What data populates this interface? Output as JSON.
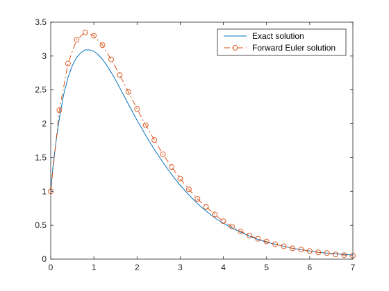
{
  "chart_data": {
    "type": "line",
    "title": "",
    "xlabel": "",
    "ylabel": "",
    "xlim": [
      0,
      7
    ],
    "ylim": [
      0,
      3.5
    ],
    "xticks": [
      0,
      1,
      2,
      3,
      4,
      5,
      6,
      7
    ],
    "yticks": [
      0,
      0.5,
      1,
      1.5,
      2,
      2.5,
      3,
      3.5
    ],
    "grid": false,
    "legend_position": "top-right",
    "series": [
      {
        "name": "Exact solution",
        "color": "#0072BD",
        "style": "solid",
        "marker": "none",
        "x": [
          0,
          0.05,
          0.1,
          0.15,
          0.2,
          0.3,
          0.4,
          0.5,
          0.6,
          0.7,
          0.8,
          0.9,
          1.0,
          1.1,
          1.2,
          1.3,
          1.4,
          1.5,
          1.6,
          1.7,
          1.8,
          1.9,
          2.0,
          2.2,
          2.4,
          2.6,
          2.8,
          3.0,
          3.2,
          3.4,
          3.6,
          3.8,
          4.0,
          4.2,
          4.4,
          4.6,
          4.8,
          5.0,
          5.2,
          5.4,
          5.6,
          5.8,
          6.0,
          6.2,
          6.4,
          6.6,
          6.8,
          7.0
        ],
        "y": [
          1.0,
          1.35,
          1.62,
          1.86,
          2.08,
          2.43,
          2.68,
          2.86,
          2.98,
          3.05,
          3.09,
          3.09,
          3.07,
          3.02,
          2.95,
          2.86,
          2.76,
          2.65,
          2.53,
          2.41,
          2.29,
          2.17,
          2.05,
          1.83,
          1.62,
          1.43,
          1.25,
          1.09,
          0.95,
          0.82,
          0.71,
          0.61,
          0.53,
          0.46,
          0.4,
          0.34,
          0.29,
          0.25,
          0.22,
          0.19,
          0.16,
          0.14,
          0.12,
          0.1,
          0.09,
          0.08,
          0.07,
          0.06
        ]
      },
      {
        "name": "Forward Euler solution",
        "color": "#D95319",
        "style": "dash-dot",
        "marker": "circle",
        "x": [
          0,
          0.2,
          0.4,
          0.6,
          0.8,
          1.0,
          1.2,
          1.4,
          1.6,
          1.8,
          2.0,
          2.2,
          2.4,
          2.6,
          2.8,
          3.0,
          3.2,
          3.4,
          3.6,
          3.8,
          4.0,
          4.2,
          4.4,
          4.6,
          4.8,
          5.0,
          5.2,
          5.4,
          5.6,
          5.8,
          6.0,
          6.2,
          6.4,
          6.6,
          6.8,
          7.0
        ],
        "y": [
          1.0,
          2.2,
          2.89,
          3.24,
          3.35,
          3.3,
          3.16,
          2.95,
          2.72,
          2.47,
          2.22,
          1.98,
          1.76,
          1.55,
          1.36,
          1.19,
          1.03,
          0.89,
          0.77,
          0.66,
          0.56,
          0.48,
          0.41,
          0.35,
          0.3,
          0.26,
          0.22,
          0.19,
          0.16,
          0.14,
          0.12,
          0.1,
          0.09,
          0.07,
          0.06,
          0.05
        ]
      }
    ]
  }
}
